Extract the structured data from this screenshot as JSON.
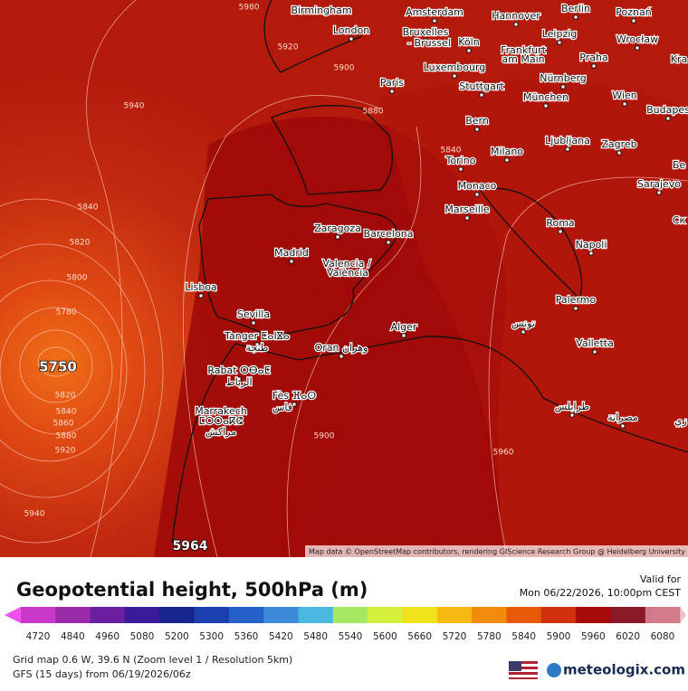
{
  "map": {
    "cities": [
      "Birmingham",
      "Amsterdam",
      "Hannover",
      "Berlin",
      "Poznań",
      "London",
      "Bruxelles",
      "- Brussel",
      "Köln",
      "Leipzig",
      "Wrocław",
      "Frankfurt",
      "am Main",
      "Praha",
      "Luxembourg",
      "Paris",
      "Stuttgart",
      "Nürnberg",
      "München",
      "Wien",
      "Budapes",
      "Bern",
      "Ljubljana",
      "Zagreb",
      "Torino",
      "Milano",
      "Monaco",
      "Sarajevo",
      "Marseille",
      "Zaragoza",
      "Barcelona",
      "Roma",
      "Napoli",
      "Madrid",
      "Valencia /",
      "València",
      "Lisboa",
      "Sevilla",
      "Palermo",
      "Tanger ⵟⴰⵏⴵⴰ",
      "طنجة",
      "Alger",
      "Oran وهران",
      "تونس",
      "Valletta",
      "Rabat ⵔⴱⴰⵟ",
      "الرباط",
      "Fès ⴼⴰⵙ",
      "فاس",
      "Marrakech",
      "ⵎⵔⵔⴰⴽⵛ",
      "مراكش",
      "طرابلس",
      "مصراتة",
      "Kra",
      "Бе",
      "Ск",
      "زي"
    ],
    "contours": [
      5980,
      5920,
      5900,
      5940,
      5880,
      5840,
      5820,
      5800,
      5780,
      5820,
      5840,
      5860,
      5880,
      5920,
      5940,
      5900,
      5960,
      5840
    ],
    "low_label": 5750,
    "high_label": 5964,
    "attribution": "Map data © OpenStreetMap contributors, rendering GIScience Research Group @ Heidelberg University"
  },
  "header": {
    "title": "Geopotential height, 500hPa (m)",
    "valid_label": "Valid for",
    "valid_time": "Mon 06/22/2026, 10:00pm CEST"
  },
  "colorbar": {
    "ticks": [
      4720,
      4840,
      4960,
      5080,
      5200,
      5300,
      5360,
      5420,
      5480,
      5540,
      5600,
      5660,
      5720,
      5780,
      5840,
      5900,
      5960,
      6020,
      6080
    ],
    "colors": [
      "#c838c8",
      "#9a2aa8",
      "#6a1fa0",
      "#3b1a9a",
      "#17238f",
      "#1b3fae",
      "#2560c8",
      "#3a8ad8",
      "#4bb8e0",
      "#a6e860",
      "#d6ef3c",
      "#f2e21c",
      "#f6b812",
      "#f28a0c",
      "#e85a0a",
      "#d0300a",
      "#a80a0a",
      "#8a1a28",
      "#d07a8a"
    ]
  },
  "footer": {
    "grid": "Grid map 0.6 W, 39.6 N (Zoom level 1 / Resolution 5km)",
    "model": "GFS (15 days) from 06/19/2026/06z",
    "brand": "meteologix.com"
  }
}
